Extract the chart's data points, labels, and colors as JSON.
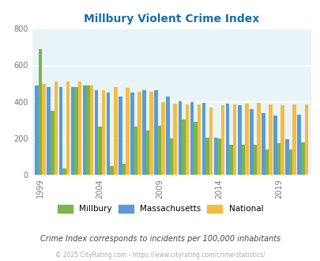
{
  "title": "Millbury Violent Crime Index",
  "subtitle": "Crime Index corresponds to incidents per 100,000 inhabitants",
  "footer": "© 2025 CityRating.com - https://www.cityrating.com/crime-statistics/",
  "years": [
    1999,
    2000,
    2001,
    2002,
    2003,
    2004,
    2005,
    2006,
    2007,
    2008,
    2009,
    2010,
    2011,
    2012,
    2013,
    2014,
    2015,
    2016,
    2017,
    2018,
    2019,
    2020,
    2021
  ],
  "millbury": [
    690,
    350,
    35,
    480,
    490,
    265,
    50,
    60,
    265,
    245,
    270,
    200,
    305,
    290,
    205,
    200,
    165,
    165,
    165,
    140,
    175,
    140,
    180
  ],
  "massachusetts": [
    490,
    480,
    480,
    480,
    490,
    465,
    450,
    430,
    450,
    465,
    465,
    430,
    405,
    400,
    395,
    205,
    390,
    380,
    360,
    340,
    325,
    195,
    330
  ],
  "national": [
    500,
    510,
    510,
    510,
    490,
    465,
    480,
    475,
    455,
    455,
    400,
    390,
    385,
    385,
    370,
    380,
    385,
    390,
    395,
    385,
    380,
    385,
    385
  ],
  "millbury_color": "#7ab648",
  "massachusetts_color": "#5b9bd5",
  "national_color": "#f5bc42",
  "bg_color": "#e8f4f8",
  "title_color": "#1a6fa8",
  "subtitle_color": "#444444",
  "footer_color": "#aaaaaa",
  "ylim": [
    0,
    800
  ],
  "yticks": [
    0,
    200,
    400,
    600,
    800
  ],
  "xlabel_years": [
    1999,
    2004,
    2009,
    2014,
    2019
  ]
}
